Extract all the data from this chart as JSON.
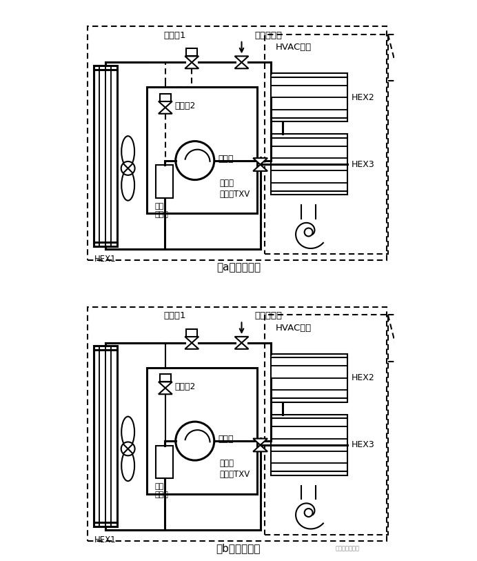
{
  "title_a": "（a）制冷模式",
  "title_b": "（b）制热模式",
  "label_solenoid1": "电磁阀1",
  "label_eev": "电子膨胀阀",
  "label_hvac": "HVAC总成",
  "label_hex1": "HEX1",
  "label_hex2": "HEX2",
  "label_hex3": "HEX3",
  "label_solenoid2": "电磁阀2",
  "label_compressor": "压缩机",
  "label_separator": "气液\n分离器",
  "label_txv": "带截止\n功能的TXV",
  "label_watermark": "汽车热管理之家"
}
